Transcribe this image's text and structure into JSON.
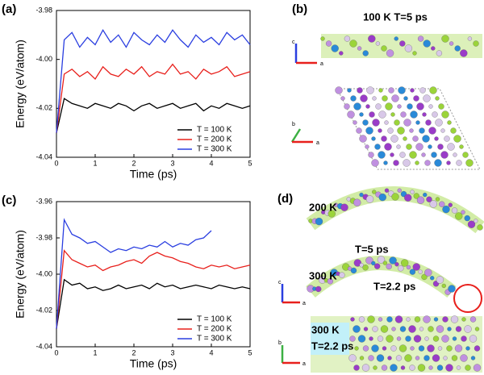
{
  "chart_data": [
    {
      "type": "line",
      "panel_label": "(a)",
      "x_label": "Time (ps)",
      "y_label": "Energy (eV/atom)",
      "xlim": [
        0,
        5
      ],
      "xticks": [
        0,
        1,
        2,
        3,
        4,
        5
      ],
      "ylim": [
        -4.04,
        -3.98
      ],
      "yticks": [
        -4.04,
        -4.02,
        {
          "value": -4,
          "label": "-4.00"
        },
        -3.98
      ],
      "legend": "lower right",
      "x": [
        0,
        0.2,
        0.4,
        0.6,
        0.8,
        1,
        1.2,
        1.4,
        1.6,
        1.8,
        2,
        2.2,
        2.4,
        2.6,
        2.8,
        3,
        3.2,
        3.4,
        3.6,
        3.8,
        4,
        4.2,
        4.4,
        4.6,
        4.8,
        5
      ],
      "series": [
        {
          "name": "T = 100 K",
          "color": "#000000",
          "values": [
            -4.03,
            -4.016,
            -4.018,
            -4.019,
            -4.02,
            -4.018,
            -4.019,
            -4.02,
            -4.018,
            -4.019,
            -4.021,
            -4.019,
            -4.018,
            -4.02,
            -4.019,
            -4.018,
            -4.02,
            -4.019,
            -4.018,
            -4.021,
            -4.019,
            -4.02,
            -4.018,
            -4.019,
            -4.02,
            -4.019
          ]
        },
        {
          "name": "T = 200 K",
          "color": "#e8201c",
          "values": [
            -4.03,
            -4.006,
            -4.004,
            -4.007,
            -4.005,
            -4.008,
            -4.003,
            -4.006,
            -4.007,
            -4.004,
            -4.006,
            -4.003,
            -4.007,
            -4.005,
            -4.006,
            -4.002,
            -4.006,
            -4.005,
            -4.008,
            -4.004,
            -4.006,
            -4.005,
            -4.003,
            -4.007,
            -4.006,
            -4.005
          ]
        },
        {
          "name": "T = 300 K",
          "color": "#2a3ee0",
          "values": [
            -4.03,
            -3.992,
            -3.989,
            -3.995,
            -3.991,
            -3.994,
            -3.988,
            -3.993,
            -3.99,
            -3.995,
            -3.989,
            -3.992,
            -3.994,
            -3.99,
            -3.993,
            -3.988,
            -3.992,
            -3.995,
            -3.99,
            -3.993,
            -3.991,
            -3.994,
            -3.989,
            -3.992,
            -3.99,
            -3.994
          ]
        }
      ]
    },
    {
      "type": "line",
      "panel_label": "(c)",
      "x_label": "Time (ps)",
      "y_label": "Energy (eV/atom)",
      "xlim": [
        0,
        5
      ],
      "xticks": [
        0,
        1,
        2,
        3,
        4,
        5
      ],
      "ylim": [
        -4.04,
        -3.96
      ],
      "yticks": [
        -4.04,
        -4.02,
        {
          "value": -4,
          "label": "-4.00"
        },
        -3.98,
        -3.96
      ],
      "legend": "lower right",
      "x": [
        0,
        0.2,
        0.4,
        0.6,
        0.8,
        1,
        1.2,
        1.4,
        1.6,
        1.8,
        2,
        2.2,
        2.4,
        2.6,
        2.8,
        3,
        3.2,
        3.4,
        3.6,
        3.8,
        4,
        4.2,
        4.4,
        4.6,
        4.8,
        5
      ],
      "series": [
        {
          "name": "T = 100 K",
          "color": "#000000",
          "values": [
            -4.03,
            -4.003,
            -4.006,
            -4.005,
            -4.008,
            -4.007,
            -4.009,
            -4.008,
            -4.006,
            -4.008,
            -4.007,
            -4.006,
            -4.008,
            -4.005,
            -4.007,
            -4.006,
            -4.008,
            -4.007,
            -4.006,
            -4.007,
            -4.008,
            -4.006,
            -4.007,
            -4.008,
            -4.007,
            -4.008
          ]
        },
        {
          "name": "T = 200 K",
          "color": "#e8201c",
          "values": [
            -4.03,
            -3.987,
            -3.992,
            -3.994,
            -3.996,
            -3.995,
            -3.998,
            -3.996,
            -3.995,
            -3.993,
            -3.992,
            -3.994,
            -3.99,
            -3.988,
            -3.99,
            -3.991,
            -3.993,
            -3.994,
            -3.996,
            -3.997,
            -3.995,
            -3.996,
            -3.995,
            -3.997,
            -3.996,
            -3.995
          ]
        },
        {
          "name": "T = 300 K",
          "color": "#2a3ee0",
          "values": [
            -4.03,
            -3.97,
            -3.978,
            -3.98,
            -3.983,
            -3.982,
            -3.985,
            -3.988,
            -3.986,
            -3.987,
            -3.985,
            -3.986,
            -3.984,
            -3.985,
            -3.982,
            -3.985,
            -3.983,
            -3.984,
            -3.981,
            -3.98,
            -3.976,
            null,
            null,
            null,
            null,
            null
          ]
        }
      ]
    }
  ],
  "structure_panels": [
    {
      "label": "(b)",
      "captions": [
        "100 K T=5 ps"
      ],
      "axis_letters": [
        "c",
        "a",
        "b",
        "a"
      ]
    },
    {
      "label": "(d)",
      "captions": [
        "200 K",
        "T=5 ps",
        "300 K",
        "T=2.2 ps",
        "300 K",
        "T=2.2 ps"
      ],
      "axis_letters": [
        "c",
        "a",
        "b",
        "a"
      ]
    }
  ]
}
